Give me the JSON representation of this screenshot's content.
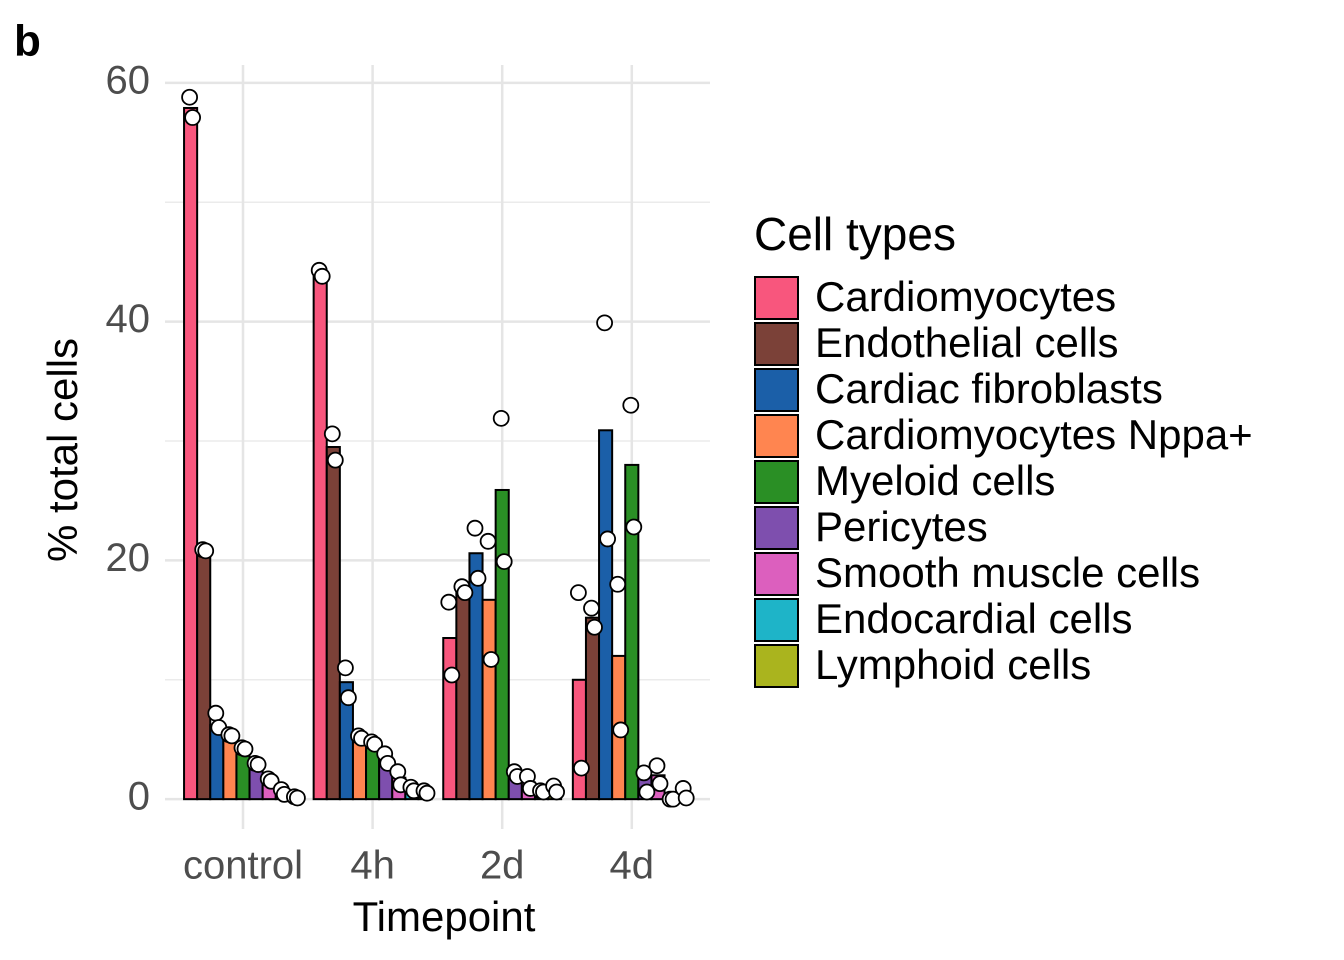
{
  "panel_label": "b",
  "chart_data": {
    "type": "bar",
    "xlabel": "Timepoint",
    "ylabel": "% total cells",
    "categories": [
      "control",
      "4h",
      "2d",
      "4d"
    ],
    "ylim": [
      -2.5,
      61.5
    ],
    "yticks": [
      0,
      20,
      40,
      60
    ],
    "minor_yticks": [
      10,
      30,
      50
    ],
    "grid": true,
    "legend_title": "Cell types",
    "legend_position": "right",
    "series": [
      {
        "name": "Cardiomyocytes",
        "color": "#F8567D",
        "values": [
          57.9,
          43.9,
          13.5,
          10.0
        ],
        "points": [
          [
            58.8,
            57.1
          ],
          [
            44.3,
            43.8
          ],
          [
            16.5,
            10.4
          ],
          [
            17.3,
            2.6
          ]
        ]
      },
      {
        "name": "Endothelial cells",
        "color": "#7B4138",
        "values": [
          20.9,
          29.5,
          17.5,
          15.2
        ],
        "points": [
          [
            20.9,
            20.8
          ],
          [
            30.6,
            28.4
          ],
          [
            17.8,
            17.3
          ],
          [
            16.0,
            14.4
          ]
        ]
      },
      {
        "name": "Cardiac fibroblasts",
        "color": "#1B5FA8",
        "values": [
          6.2,
          9.8,
          20.6,
          30.9
        ],
        "points": [
          [
            7.2,
            6.0
          ],
          [
            11.0,
            8.5
          ],
          [
            22.7,
            18.5
          ],
          [
            39.9,
            21.8
          ]
        ]
      },
      {
        "name": "Cardiomyocytes Nppa+",
        "color": "#FF8550",
        "values": [
          5.0,
          5.0,
          16.7,
          12.0
        ],
        "points": [
          [
            5.4,
            5.3
          ],
          [
            5.3,
            5.1
          ],
          [
            21.6,
            11.7
          ],
          [
            18.0,
            5.8
          ]
        ]
      },
      {
        "name": "Myeloid cells",
        "color": "#2A8F25",
        "values": [
          3.8,
          4.5,
          25.9,
          28.0
        ],
        "points": [
          [
            4.3,
            4.2
          ],
          [
            4.8,
            4.6
          ],
          [
            31.9,
            19.9
          ],
          [
            33.0,
            22.8
          ]
        ]
      },
      {
        "name": "Pericytes",
        "color": "#7E4FAE",
        "values": [
          2.7,
          3.5,
          2.1,
          1.9
        ],
        "points": [
          [
            3.0,
            2.9
          ],
          [
            3.8,
            3.0
          ],
          [
            2.3,
            1.9
          ],
          [
            2.2,
            0.6
          ]
        ]
      },
      {
        "name": "Smooth muscle cells",
        "color": "#DC5FBE",
        "values": [
          1.3,
          1.8,
          1.4,
          2.0
        ],
        "points": [
          [
            1.7,
            1.5
          ],
          [
            2.3,
            1.2
          ],
          [
            1.9,
            0.9
          ],
          [
            2.8,
            1.3
          ]
        ]
      },
      {
        "name": "Endocardial cells",
        "color": "#1EB4C8",
        "values": [
          0.4,
          0.9,
          0.7,
          0.1
        ],
        "points": [
          [
            0.8,
            0.4
          ],
          [
            1.0,
            0.7
          ],
          [
            0.7,
            0.6
          ],
          [
            0.0,
            0.0
          ]
        ]
      },
      {
        "name": "Lymphoid cells",
        "color": "#AAB41E",
        "values": [
          0.2,
          0.6,
          0.9,
          0.5
        ],
        "points": [
          [
            0.2,
            0.1
          ],
          [
            0.7,
            0.5
          ],
          [
            1.1,
            0.6
          ],
          [
            0.9,
            0.1
          ]
        ]
      }
    ]
  }
}
